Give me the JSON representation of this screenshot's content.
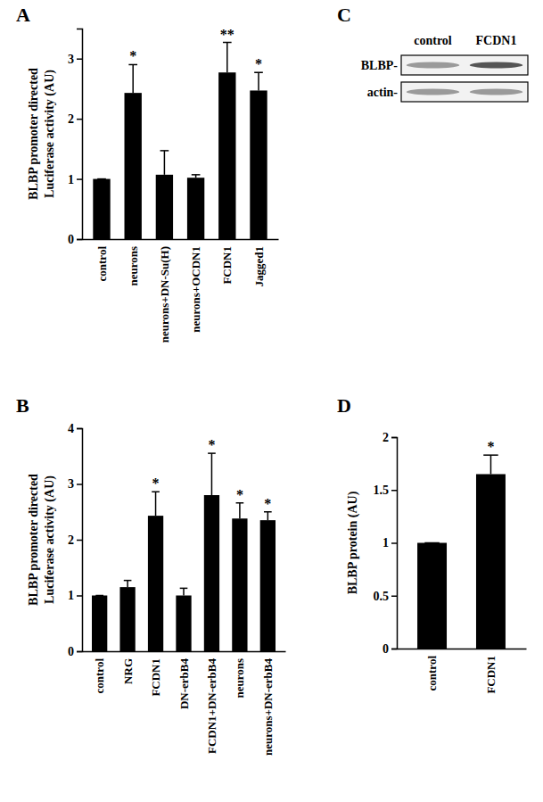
{
  "chart_data": [
    {
      "type": "bar",
      "panel": "A",
      "ylabel": [
        "BLBP promoter directed",
        "Luciferase activity (AU)"
      ],
      "categories": [
        "control",
        "neurons",
        "neurons+DN-Su(H)",
        "neurons+OCDN1",
        "FCDN1",
        "Jagged1"
      ],
      "values": [
        1,
        2.43,
        1.07,
        1.02,
        2.77,
        2.47
      ],
      "errors": [
        0,
        0.47,
        0.4,
        0.05,
        0.5,
        0.3
      ],
      "annotations": [
        null,
        "*",
        null,
        null,
        "**",
        "*"
      ],
      "color": "#000000",
      "ylim": [
        0,
        3.5
      ],
      "yticks": [
        0,
        1,
        2,
        3
      ]
    },
    {
      "type": "blot",
      "panel": "C",
      "lanes": [
        "control",
        "FCDN1"
      ],
      "rows": [
        "BLBP-",
        "actin-"
      ]
    },
    {
      "type": "bar",
      "panel": "B",
      "ylabel": [
        "BLBP promoter directed",
        "Luciferase activity (AU)"
      ],
      "categories": [
        "control",
        "NRG",
        "FCDN1",
        "DN-erbB4",
        "FCDN1+DN-erbB4",
        "neurons",
        "neurons+DN-erbB4"
      ],
      "values": [
        1,
        1.15,
        2.43,
        1.0,
        2.8,
        2.38,
        2.35
      ],
      "errors": [
        0,
        0.12,
        0.43,
        0.13,
        0.75,
        0.28,
        0.15
      ],
      "annotations": [
        null,
        null,
        "*",
        null,
        "*",
        "*",
        "*"
      ],
      "color": "#000000",
      "ylim": [
        0,
        4
      ],
      "yticks": [
        0,
        1,
        2,
        3,
        4
      ]
    },
    {
      "type": "bar",
      "panel": "D",
      "ylabel": [
        "BLBP protein (AU)"
      ],
      "categories": [
        "control",
        "FCDN1"
      ],
      "values": [
        1,
        1.65
      ],
      "errors": [
        0,
        0.18
      ],
      "annotations": [
        null,
        "*"
      ],
      "color": "#000000",
      "ylim": [
        0,
        2
      ],
      "yticks": [
        0,
        0.5,
        1,
        1.5,
        2
      ]
    }
  ]
}
